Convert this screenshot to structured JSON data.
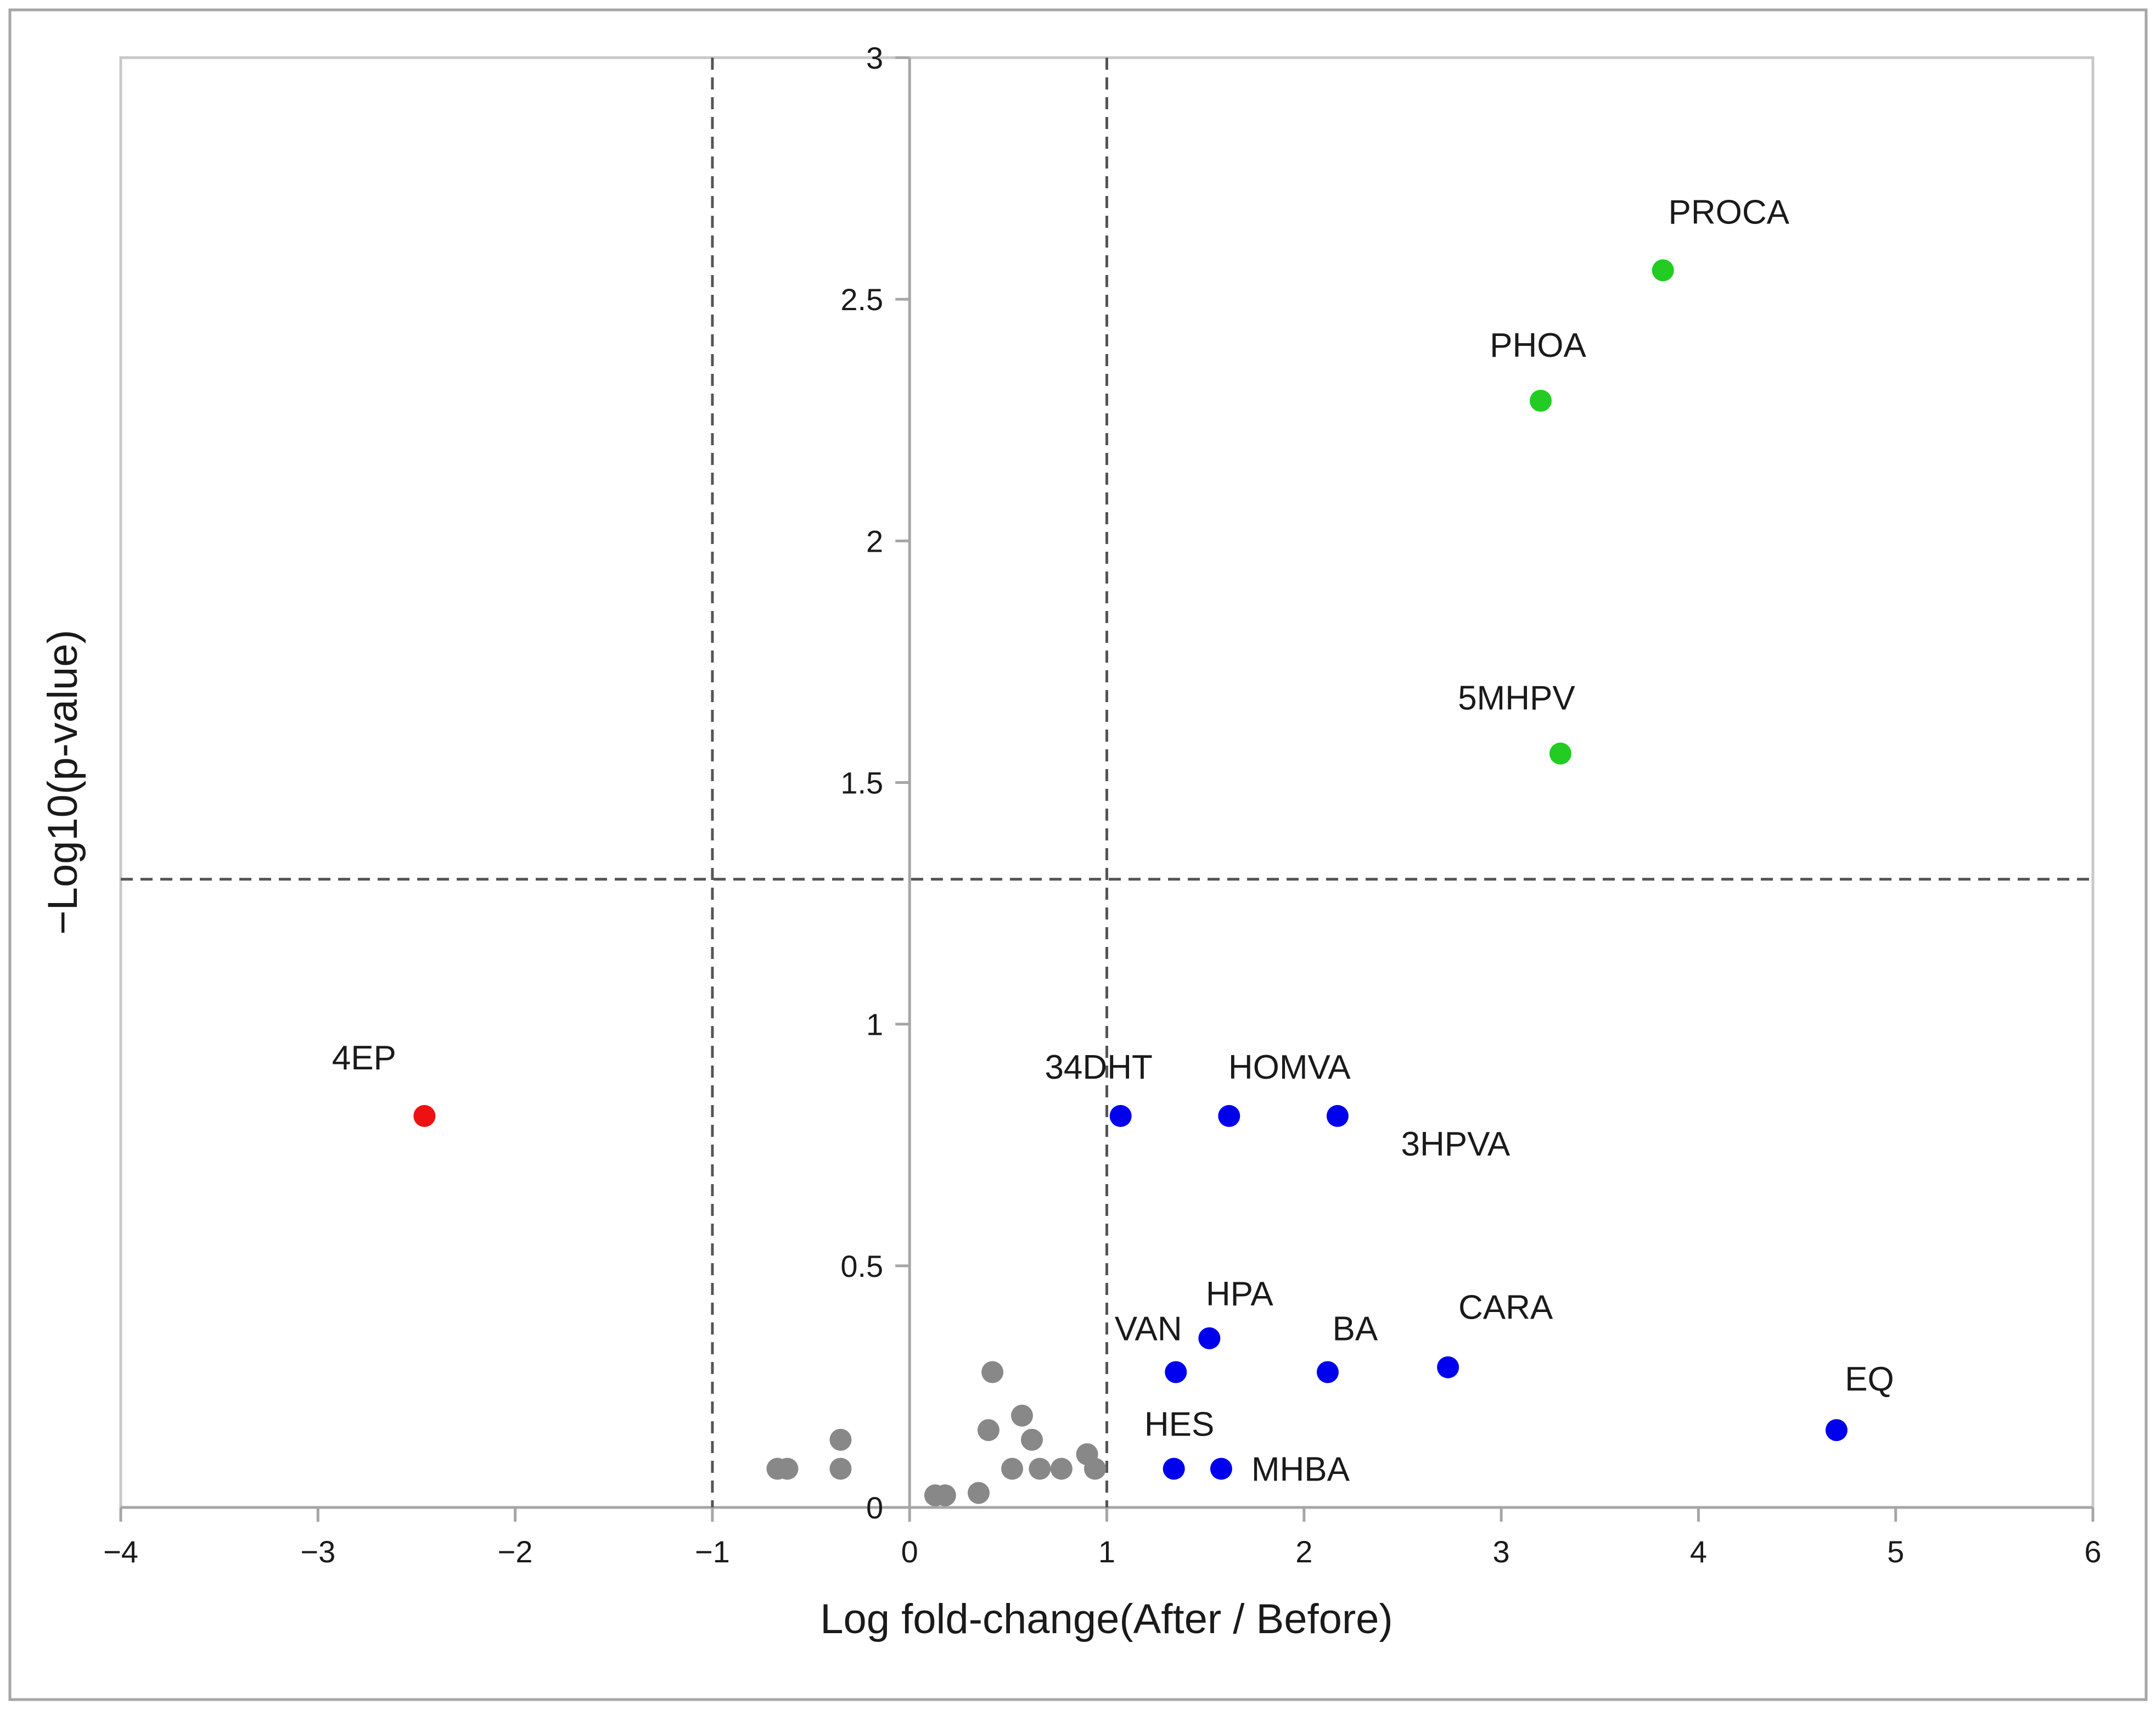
{
  "chart_data": {
    "type": "scatter",
    "title": "",
    "xlabel": "Log fold-change(After / Before)",
    "ylabel": "−Log10(p-value)",
    "xlim": [
      -4,
      6
    ],
    "ylim": [
      0,
      3
    ],
    "x_ticks": [
      -4,
      -3,
      -2,
      -1,
      0,
      1,
      2,
      3,
      4,
      5,
      6
    ],
    "x_tick_labels": [
      "−4",
      "−3",
      "−2",
      "−1",
      "0",
      "1",
      "2",
      "3",
      "4",
      "5",
      "6"
    ],
    "y_ticks": [
      0,
      0.5,
      1,
      1.5,
      2,
      2.5,
      3
    ],
    "y_tick_labels": [
      "0",
      "0.5",
      "1",
      "1.5",
      "2",
      "2.5",
      "3"
    ],
    "grid": false,
    "thresholds": {
      "fold_change_lines": [
        -1,
        1
      ],
      "significance_line": 1.3
    },
    "colors": {
      "up_significant": "#22cc22",
      "down": "#ee1111",
      "up_fold": "#0000ee",
      "not_significant": "#888888",
      "threshold_line": "#555555",
      "axis": "#a6a6a6"
    },
    "points": [
      {
        "label": "PROCA",
        "x": 3.82,
        "y": 2.56,
        "group": "up_significant"
      },
      {
        "label": "PHOA",
        "x": 3.2,
        "y": 2.29,
        "group": "up_significant"
      },
      {
        "label": "5MHPV",
        "x": 3.3,
        "y": 1.56,
        "group": "up_significant"
      },
      {
        "label": "4EP",
        "x": -2.46,
        "y": 0.81,
        "group": "down"
      },
      {
        "label": "34DHT",
        "x": 1.07,
        "y": 0.81,
        "group": "up_fold"
      },
      {
        "label": "HOMVA",
        "x": 1.62,
        "y": 0.81,
        "group": "up_fold"
      },
      {
        "label": "3HPVA",
        "x": 2.17,
        "y": 0.81,
        "group": "up_fold"
      },
      {
        "label": "HPA",
        "x": 1.52,
        "y": 0.35,
        "group": "up_fold"
      },
      {
        "label": "VAN",
        "x": 1.35,
        "y": 0.28,
        "group": "up_fold"
      },
      {
        "label": "BA",
        "x": 2.12,
        "y": 0.28,
        "group": "up_fold"
      },
      {
        "label": "CARA",
        "x": 2.73,
        "y": 0.29,
        "group": "up_fold"
      },
      {
        "label": "EQ",
        "x": 4.7,
        "y": 0.16,
        "group": "up_fold"
      },
      {
        "label": "HES",
        "x": 1.34,
        "y": 0.08,
        "group": "up_fold"
      },
      {
        "label": "MHBA",
        "x": 1.58,
        "y": 0.08,
        "group": "up_fold"
      },
      {
        "label": "",
        "x": 0.42,
        "y": 0.28,
        "group": "not_significant"
      },
      {
        "label": "",
        "x": 0.57,
        "y": 0.19,
        "group": "not_significant"
      },
      {
        "label": "",
        "x": 0.4,
        "y": 0.16,
        "group": "not_significant"
      },
      {
        "label": "",
        "x": 0.62,
        "y": 0.14,
        "group": "not_significant"
      },
      {
        "label": "",
        "x": -0.35,
        "y": 0.14,
        "group": "not_significant"
      },
      {
        "label": "",
        "x": 0.9,
        "y": 0.11,
        "group": "not_significant"
      },
      {
        "label": "",
        "x": -0.67,
        "y": 0.08,
        "group": "not_significant"
      },
      {
        "label": "",
        "x": -0.62,
        "y": 0.08,
        "group": "not_significant"
      },
      {
        "label": "",
        "x": -0.35,
        "y": 0.08,
        "group": "not_significant"
      },
      {
        "label": "",
        "x": 0.52,
        "y": 0.08,
        "group": "not_significant"
      },
      {
        "label": "",
        "x": 0.66,
        "y": 0.08,
        "group": "not_significant"
      },
      {
        "label": "",
        "x": 0.77,
        "y": 0.08,
        "group": "not_significant"
      },
      {
        "label": "",
        "x": 0.94,
        "y": 0.08,
        "group": "not_significant"
      },
      {
        "label": "",
        "x": 0.13,
        "y": 0.025,
        "group": "not_significant"
      },
      {
        "label": "",
        "x": 0.18,
        "y": 0.025,
        "group": "not_significant"
      },
      {
        "label": "",
        "x": 0.35,
        "y": 0.03,
        "group": "not_significant"
      }
    ]
  }
}
